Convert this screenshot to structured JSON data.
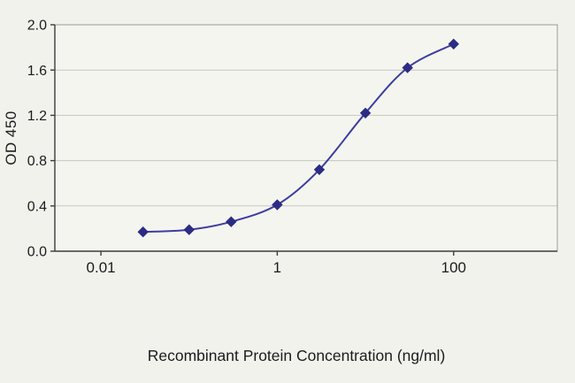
{
  "chart_data": {
    "type": "line",
    "title": "",
    "xlabel": "Recombinant Protein Concentration (ng/ml)",
    "ylabel": "OD 450",
    "x_scale": "log",
    "xlim": [
      0.003,
      1500
    ],
    "ylim": [
      0,
      2.0
    ],
    "grid": "horizontal",
    "legend": "none",
    "x_ticks": [
      {
        "value": 0.01,
        "label": "0.01"
      },
      {
        "value": 1,
        "label": "1"
      },
      {
        "value": 100,
        "label": "100"
      }
    ],
    "y_ticks": [
      {
        "value": 0.0,
        "label": "0.0"
      },
      {
        "value": 0.4,
        "label": "0.4"
      },
      {
        "value": 0.8,
        "label": "0.8"
      },
      {
        "value": 1.2,
        "label": "1.2"
      },
      {
        "value": 1.6,
        "label": "1.6"
      },
      {
        "value": 2.0,
        "label": "2.0"
      }
    ],
    "series": [
      {
        "name": "OD 450",
        "line_color": "#3d3da0",
        "marker": "diamond",
        "marker_color": "#2c2c84",
        "points": [
          [
            0.03,
            0.17
          ],
          [
            0.1,
            0.19
          ],
          [
            0.3,
            0.26
          ],
          [
            1,
            0.41
          ],
          [
            3,
            0.72
          ],
          [
            10,
            1.22
          ],
          [
            30,
            1.62
          ],
          [
            100,
            1.83
          ]
        ]
      }
    ],
    "colors": {
      "plot_background": "#f4f5ef",
      "gridline": "#c7c8c1",
      "plot_border": "#9b9c95",
      "axis_line": "#3c3c3c",
      "tick_text": "#1c1c1c"
    }
  }
}
